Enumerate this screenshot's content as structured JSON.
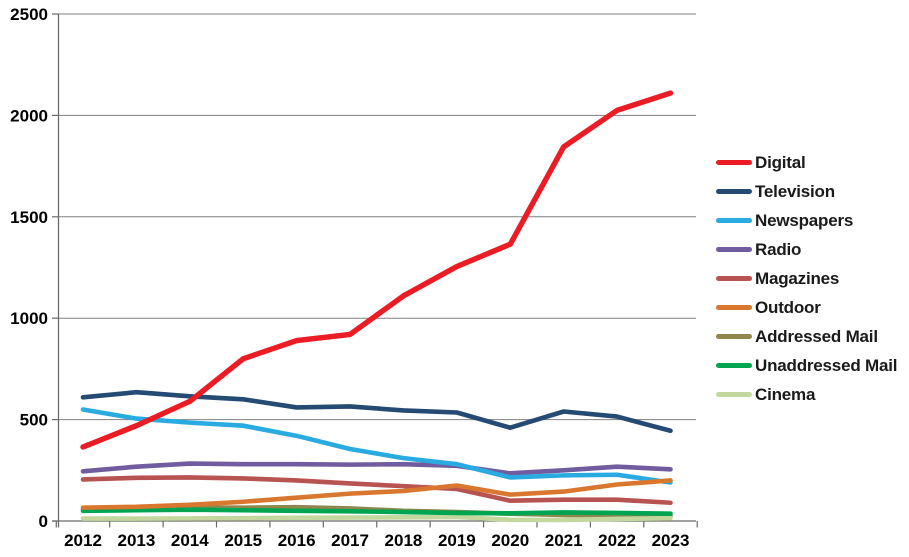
{
  "chart_data": {
    "type": "line",
    "title": "",
    "xlabel": "",
    "ylabel": "",
    "x_labels": [
      "2012",
      "2013",
      "2014",
      "2015",
      "2016",
      "2017",
      "2018",
      "2019",
      "2020",
      "2021",
      "2022",
      "2023"
    ],
    "y_ticks": [
      0,
      500,
      1000,
      1500,
      2000,
      2500
    ],
    "ylim": [
      0,
      2500
    ],
    "grid": true,
    "legend_position": "right",
    "series": [
      {
        "name": "Digital",
        "color": "#EC1C24",
        "values": [
          365,
          470,
          590,
          800,
          890,
          920,
          1110,
          1255,
          1365,
          1845,
          2025,
          2110
        ]
      },
      {
        "name": "Television",
        "color": "#254A73",
        "values": [
          610,
          635,
          615,
          600,
          560,
          565,
          545,
          535,
          460,
          540,
          515,
          445
        ]
      },
      {
        "name": "Newspapers",
        "color": "#29ABE2",
        "values": [
          550,
          505,
          485,
          470,
          420,
          355,
          310,
          280,
          215,
          225,
          228,
          190
        ]
      },
      {
        "name": "Radio",
        "color": "#705C9E",
        "values": [
          245,
          268,
          283,
          280,
          280,
          278,
          280,
          272,
          235,
          250,
          268,
          255
        ]
      },
      {
        "name": "Magazines",
        "color": "#B75351",
        "values": [
          205,
          213,
          215,
          210,
          200,
          185,
          172,
          158,
          100,
          105,
          105,
          90
        ]
      },
      {
        "name": "Outdoor",
        "color": "#D9772F",
        "values": [
          66,
          70,
          80,
          95,
          115,
          135,
          148,
          175,
          130,
          145,
          180,
          200
        ]
      },
      {
        "name": "Addressed Mail",
        "color": "#90874F",
        "values": [
          58,
          62,
          67,
          66,
          68,
          62,
          50,
          44,
          36,
          30,
          28,
          26
        ]
      },
      {
        "name": "Unaddressed Mail",
        "color": "#00A551",
        "values": [
          50,
          53,
          56,
          53,
          50,
          48,
          44,
          40,
          38,
          42,
          40,
          36
        ]
      },
      {
        "name": "Cinema",
        "color": "#C4D79E",
        "values": [
          12,
          12,
          13,
          14,
          16,
          17,
          18,
          20,
          6,
          5,
          10,
          14
        ]
      }
    ]
  },
  "colors": {
    "background": "#FFFFFF",
    "gridline": "#808080",
    "axis": "#6B6B6B",
    "tick_text": "#000000"
  }
}
